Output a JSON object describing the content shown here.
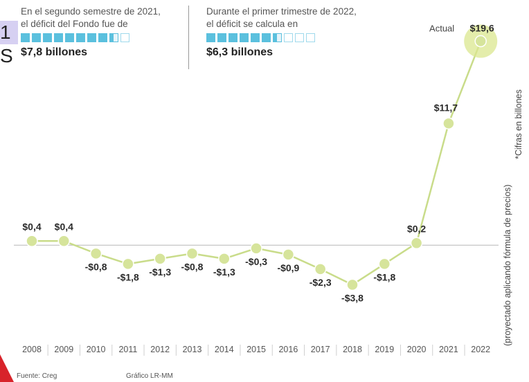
{
  "header": {
    "partial_title": "1 S",
    "note_left": {
      "line1": "En el segundo semestre de 2021,",
      "line2": "el déficit del Fondo fue de",
      "value": "$7,8 billones",
      "squares_full": 8,
      "squares_partial": 1,
      "squares_empty": 1
    },
    "note_right": {
      "line1": "Durante el primer trimestre de 2022,",
      "line2": "el déficit se calcula en",
      "value": "$6,3 billones",
      "squares_full": 6,
      "squares_partial": 1,
      "squares_empty": 3
    }
  },
  "side_notes": {
    "right": "*Cifras en billones",
    "left": "(proyectado aplicando fórmula de precios)"
  },
  "footer": {
    "source": "Fuente: Creg",
    "credit": "Gráfico LR-MM"
  },
  "colors": {
    "line": "#c9dc8a",
    "marker": "#d6e49b",
    "highlight": "#dbe78f",
    "zero_line": "#bfbfbf",
    "accent_blue": "#5bc0de"
  },
  "chart_data": {
    "type": "line",
    "x": [
      "2008",
      "2009",
      "2010",
      "2011",
      "2012",
      "2013",
      "2014",
      "2015",
      "2016",
      "2017",
      "2018",
      "2019",
      "2020",
      "2021",
      "2022"
    ],
    "series": [
      {
        "values": [
          0.4,
          0.4,
          -0.8,
          -1.8,
          -1.3,
          -0.8,
          -1.3,
          -0.3,
          -0.9,
          -2.3,
          -3.8,
          -1.8,
          0.2,
          11.7,
          19.6
        ]
      }
    ],
    "data_labels": [
      "$0,4",
      "$0,4",
      "-$0,8",
      "-$1,8",
      "-$1,3",
      "-$0,8",
      "-$1,3",
      "-$0,3",
      "-$0,9",
      "-$2,3",
      "-$3,8",
      "-$1,8",
      "$0,2",
      "$11,7",
      "$19,6"
    ],
    "annotation": "Actual",
    "highlight_index": 14,
    "ylim": [
      -4.5,
      20.5
    ],
    "grid": false,
    "zero_line": true
  }
}
